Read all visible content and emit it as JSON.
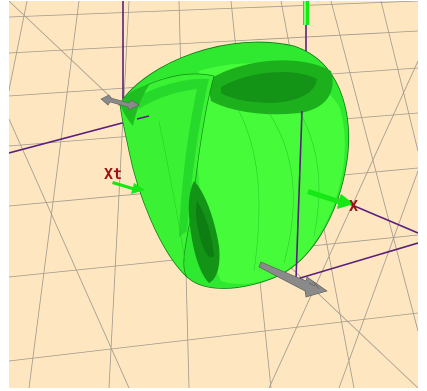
{
  "viewport": {
    "background": "#fde6c0",
    "grid_color": "#a09a8c",
    "surface_colors": {
      "light": "#4cff3c",
      "mid": "#2fe830",
      "dark": "#1db81e",
      "shadow": "#128c16",
      "edge": "#0c7a10"
    },
    "axis_line_color": "#5a1f7a",
    "axis_arrow_color": "#15e815",
    "axis_arrow_gray": "#8a8a8a",
    "label_color": "#9b1010"
  },
  "labels": {
    "x": "X",
    "xt": "Xt"
  }
}
